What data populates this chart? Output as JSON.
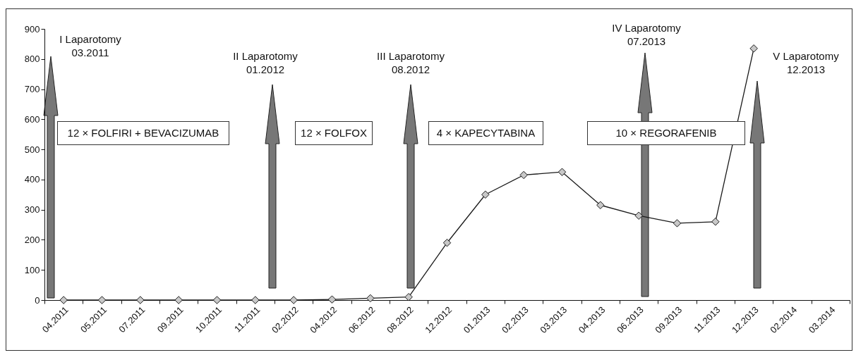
{
  "chart_data": {
    "type": "line",
    "categories": [
      "04.2011",
      "05.2011",
      "07.2011",
      "09.2011",
      "10.2011",
      "11.2011",
      "02.2012",
      "04.2012",
      "06.2012",
      "08.2012",
      "12.2012",
      "01.2013",
      "02.2013",
      "03.2013",
      "04.2013",
      "06.2013",
      "09.2013",
      "11.2013",
      "12.2013",
      "02.2014",
      "03.2014"
    ],
    "series": [
      {
        "color": "#1a1a1a",
        "values": [
          0,
          0,
          0,
          0,
          0,
          0,
          0,
          2,
          6,
          10,
          190,
          350,
          415,
          425,
          315,
          280,
          255,
          260,
          835,
          null,
          null
        ]
      }
    ],
    "ylim": [
      0,
      900
    ],
    "yticks": [
      0,
      100,
      200,
      300,
      400,
      500,
      600,
      700,
      800,
      900
    ],
    "grid": false,
    "marker": "diamond",
    "line_style": "solid",
    "annotations": [
      "I Laparotomy\n03.2011",
      "II Laparotomy\n01.2012",
      "III Laparotomy\n08.2012",
      "IV Laparotomy\n07.2013",
      "V Laparotomy\n12.2013",
      "12 × FOLFIRI + BEVACIZUMAB",
      "12 × FOLFOX",
      "4 × KAPECYTABINA",
      "10 × REGORAFENIB"
    ]
  }
}
